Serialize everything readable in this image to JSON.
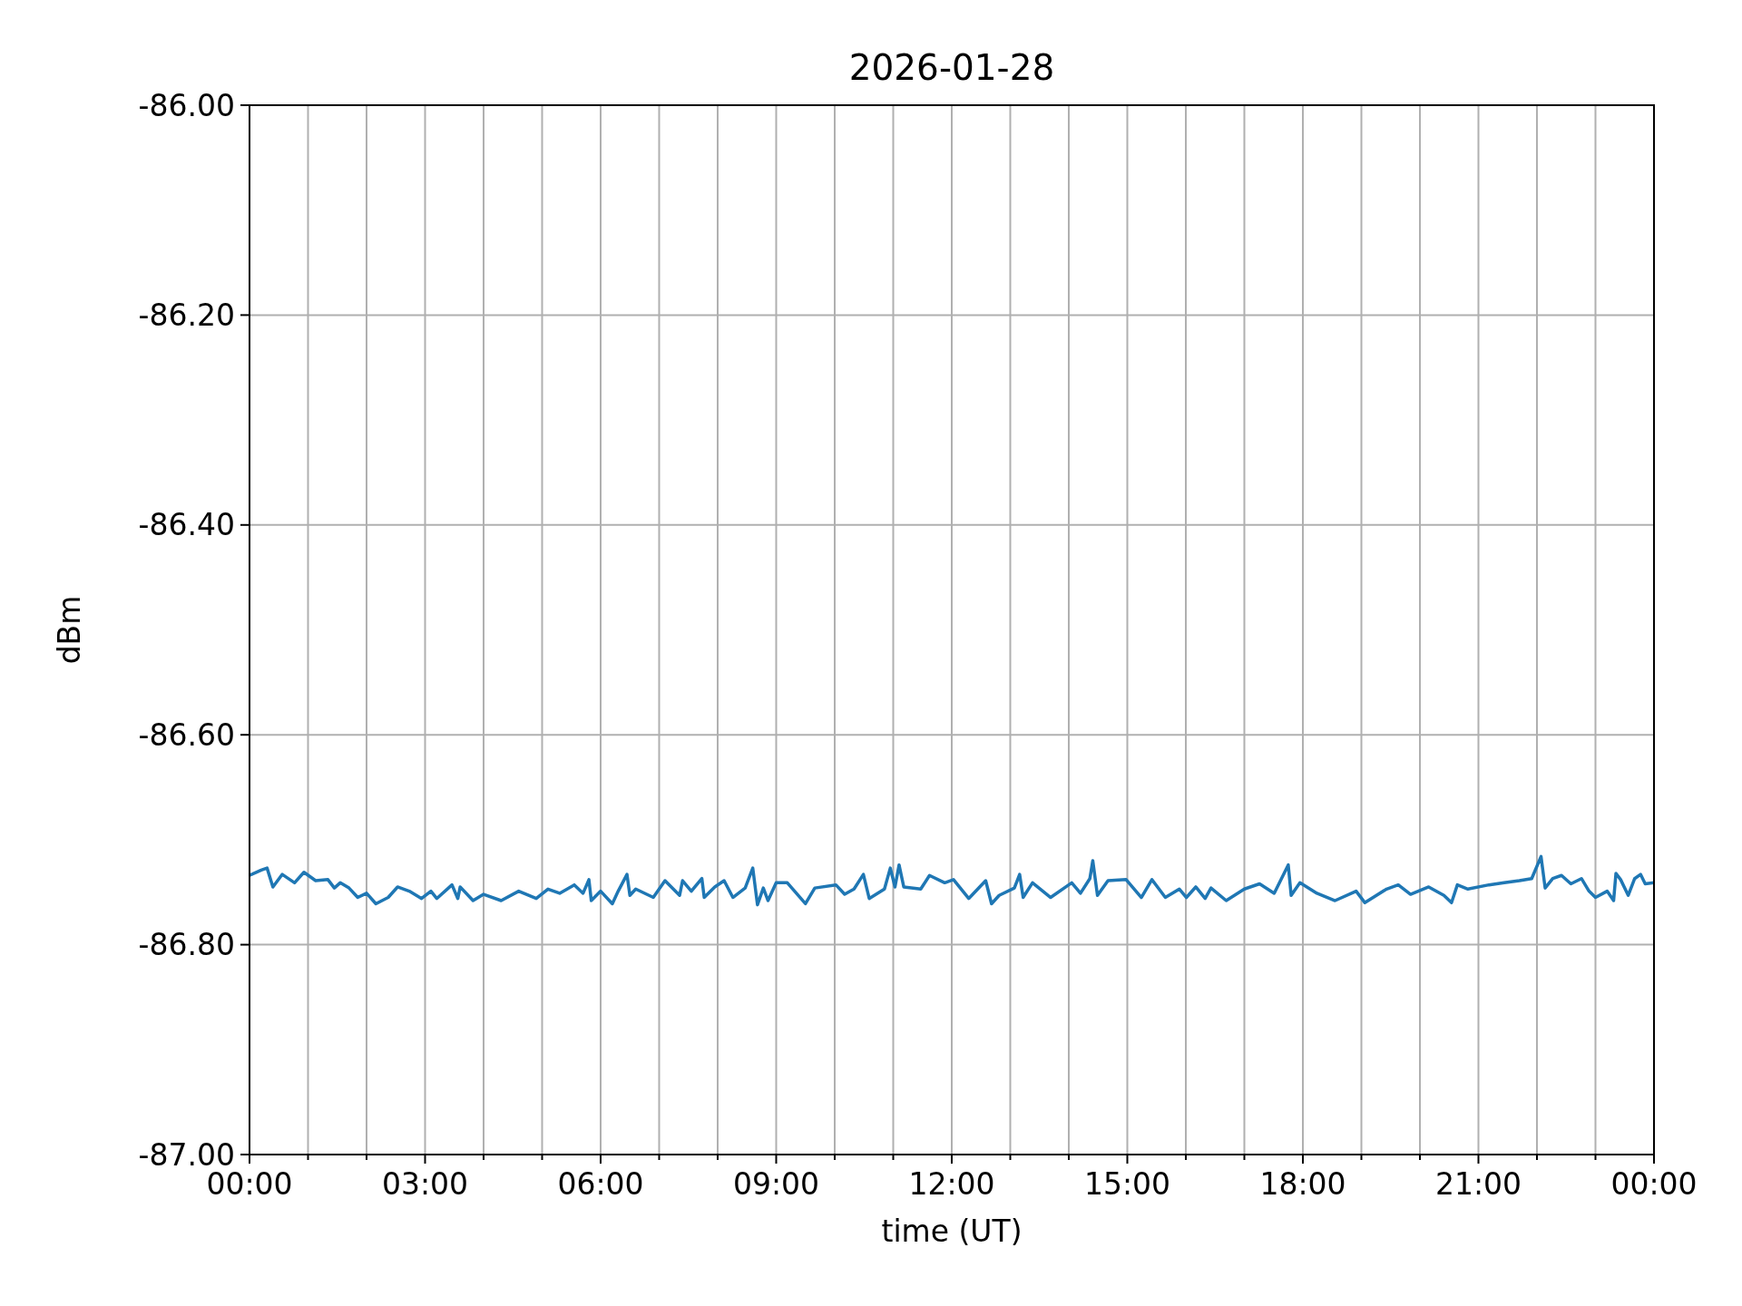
{
  "chart_data": {
    "type": "line",
    "title": "2026-01-28",
    "xlabel": "time (UT)",
    "ylabel": "dBm",
    "xlim": [
      0,
      24
    ],
    "ylim": [
      -87,
      -86
    ],
    "xticks": [
      {
        "value": 0,
        "label": "00:00"
      },
      {
        "value": 1,
        "label": null
      },
      {
        "value": 2,
        "label": null
      },
      {
        "value": 3,
        "label": "03:00"
      },
      {
        "value": 4,
        "label": null
      },
      {
        "value": 5,
        "label": null
      },
      {
        "value": 6,
        "label": "06:00"
      },
      {
        "value": 7,
        "label": null
      },
      {
        "value": 8,
        "label": null
      },
      {
        "value": 9,
        "label": "09:00"
      },
      {
        "value": 10,
        "label": null
      },
      {
        "value": 11,
        "label": null
      },
      {
        "value": 12,
        "label": "12:00"
      },
      {
        "value": 13,
        "label": null
      },
      {
        "value": 14,
        "label": null
      },
      {
        "value": 15,
        "label": "15:00"
      },
      {
        "value": 16,
        "label": null
      },
      {
        "value": 17,
        "label": null
      },
      {
        "value": 18,
        "label": "18:00"
      },
      {
        "value": 19,
        "label": null
      },
      {
        "value": 20,
        "label": null
      },
      {
        "value": 21,
        "label": "21:00"
      },
      {
        "value": 22,
        "label": null
      },
      {
        "value": 23,
        "label": null
      },
      {
        "value": 24,
        "label": "00:00"
      }
    ],
    "yticks": [
      {
        "value": -87,
        "label": "-87.00"
      },
      {
        "value": -86.8,
        "label": "-86.80"
      },
      {
        "value": -86.6,
        "label": "-86.60"
      },
      {
        "value": -86.4,
        "label": "-86.40"
      },
      {
        "value": -86.2,
        "label": "-86.20"
      },
      {
        "value": -86,
        "label": "-86.00"
      }
    ],
    "grid": true,
    "line_style": "solid",
    "marker": "none",
    "series": [
      {
        "color": "#1f77b4",
        "x": [
          0,
          0.2,
          0.3,
          0.4,
          0.56,
          0.77,
          0.93,
          1.13,
          1.34,
          1.45,
          1.55,
          1.7,
          1.85,
          2,
          2.16,
          2.37,
          2.53,
          2.73,
          2.94,
          3.1,
          3.2,
          3.46,
          3.56,
          3.6,
          3.82,
          4,
          4.3,
          4.6,
          4.9,
          5.1,
          5.3,
          5.55,
          5.7,
          5.8,
          5.84,
          6,
          6.2,
          6.3,
          6.45,
          6.5,
          6.6,
          6.9,
          7.1,
          7.35,
          7.4,
          7.55,
          7.73,
          7.77,
          7.95,
          8.11,
          8.26,
          8.47,
          8.6,
          8.68,
          8.78,
          8.86,
          9,
          9.19,
          9.5,
          9.66,
          10.02,
          10.17,
          10.33,
          10.49,
          10.59,
          10.85,
          10.95,
          11.03,
          11.1,
          11.18,
          11.47,
          11.62,
          11.88,
          12.03,
          12.29,
          12.58,
          12.68,
          12.81,
          13.07,
          13.16,
          13.22,
          13.38,
          13.69,
          14.05,
          14.2,
          14.36,
          14.41,
          14.49,
          14.67,
          14.98,
          15.24,
          15.42,
          15.65,
          15.89,
          16.01,
          16.17,
          16.33,
          16.43,
          16.69,
          17,
          17.26,
          17.51,
          17.75,
          17.8,
          17.95,
          18.24,
          18.55,
          18.91,
          19.06,
          19.43,
          19.63,
          19.84,
          20.15,
          20.41,
          20.54,
          20.64,
          20.82,
          21.18,
          21.44,
          21.7,
          21.91,
          22.07,
          22.14,
          22.27,
          22.42,
          22.58,
          22.76,
          22.89,
          23,
          23.2,
          23.31,
          23.35,
          23.43,
          23.56,
          23.67,
          23.77,
          23.85,
          24
        ],
        "values": [
          -86.734,
          -86.729,
          -86.727,
          -86.745,
          -86.733,
          -86.741,
          -86.731,
          -86.739,
          -86.738,
          -86.746,
          -86.741,
          -86.746,
          -86.755,
          -86.751,
          -86.761,
          -86.755,
          -86.745,
          -86.749,
          -86.756,
          -86.749,
          -86.756,
          -86.743,
          -86.756,
          -86.745,
          -86.758,
          -86.752,
          -86.758,
          -86.749,
          -86.756,
          -86.747,
          -86.751,
          -86.743,
          -86.751,
          -86.738,
          -86.758,
          -86.749,
          -86.761,
          -86.749,
          -86.733,
          -86.753,
          -86.747,
          -86.755,
          -86.739,
          -86.753,
          -86.739,
          -86.749,
          -86.737,
          -86.755,
          -86.745,
          -86.739,
          -86.755,
          -86.746,
          -86.727,
          -86.762,
          -86.746,
          -86.758,
          -86.741,
          -86.741,
          -86.761,
          -86.746,
          -86.743,
          -86.752,
          -86.747,
          -86.733,
          -86.756,
          -86.747,
          -86.727,
          -86.745,
          -86.724,
          -86.745,
          -86.747,
          -86.734,
          -86.741,
          -86.738,
          -86.756,
          -86.739,
          -86.761,
          -86.753,
          -86.746,
          -86.733,
          -86.755,
          -86.741,
          -86.755,
          -86.741,
          -86.751,
          -86.737,
          -86.72,
          -86.753,
          -86.739,
          -86.738,
          -86.755,
          -86.738,
          -86.755,
          -86.747,
          -86.755,
          -86.745,
          -86.756,
          -86.746,
          -86.758,
          -86.747,
          -86.742,
          -86.751,
          -86.724,
          -86.753,
          -86.741,
          -86.751,
          -86.758,
          -86.749,
          -86.76,
          -86.747,
          -86.743,
          -86.752,
          -86.745,
          -86.753,
          -86.76,
          -86.743,
          -86.747,
          -86.743,
          -86.741,
          -86.739,
          -86.737,
          -86.716,
          -86.746,
          -86.737,
          -86.734,
          -86.742,
          -86.737,
          -86.749,
          -86.755,
          -86.749,
          -86.758,
          -86.732,
          -86.738,
          -86.753,
          -86.737,
          -86.733,
          -86.742,
          -86.741
        ]
      }
    ]
  }
}
